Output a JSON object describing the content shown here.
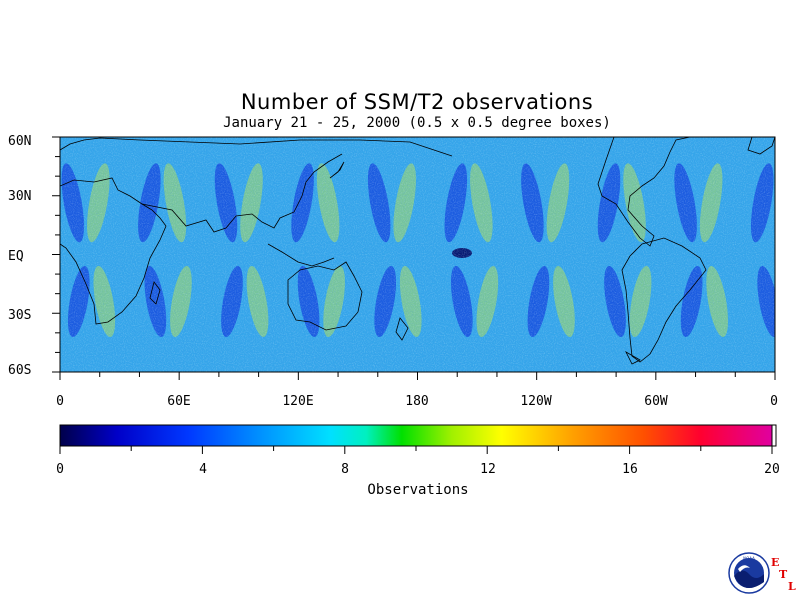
{
  "title": "Number of SSM/T2 observations",
  "subtitle": "January 21 - 25, 2000 (0.5 x 0.5 degree boxes)",
  "map": {
    "lat_ticks": [
      "60N",
      "30N",
      "EQ",
      "30S",
      "60S"
    ],
    "lon_ticks": [
      "0",
      "60E",
      "120E",
      "180",
      "120W",
      "60W",
      "0"
    ],
    "colors": {
      "ocean_base": "#35a6ea",
      "low_swath": "#0a2ad8",
      "high_swath": "#aee05a",
      "coast": "#000000"
    }
  },
  "colorbar": {
    "labels": [
      "0",
      "4",
      "8",
      "12",
      "16",
      "20"
    ],
    "min": 0,
    "max": 20,
    "title": "Observations"
  },
  "chart_data": {
    "type": "heatmap",
    "title": "Number of SSM/T2 observations",
    "subtitle": "January 21 - 25, 2000 (0.5 x 0.5 degree boxes)",
    "xlabel": "",
    "ylabel": "",
    "x_range": [
      0,
      360
    ],
    "y_range": [
      -60,
      60
    ],
    "value_range": [
      0,
      20
    ],
    "colorbar_label": "Observations",
    "typical_value": 6,
    "pattern": "alternating diagonal swaths of low (~2) and high (~9) counts"
  },
  "logo": {
    "name": "NOAA",
    "letters": [
      "E",
      "T",
      "L"
    ]
  }
}
